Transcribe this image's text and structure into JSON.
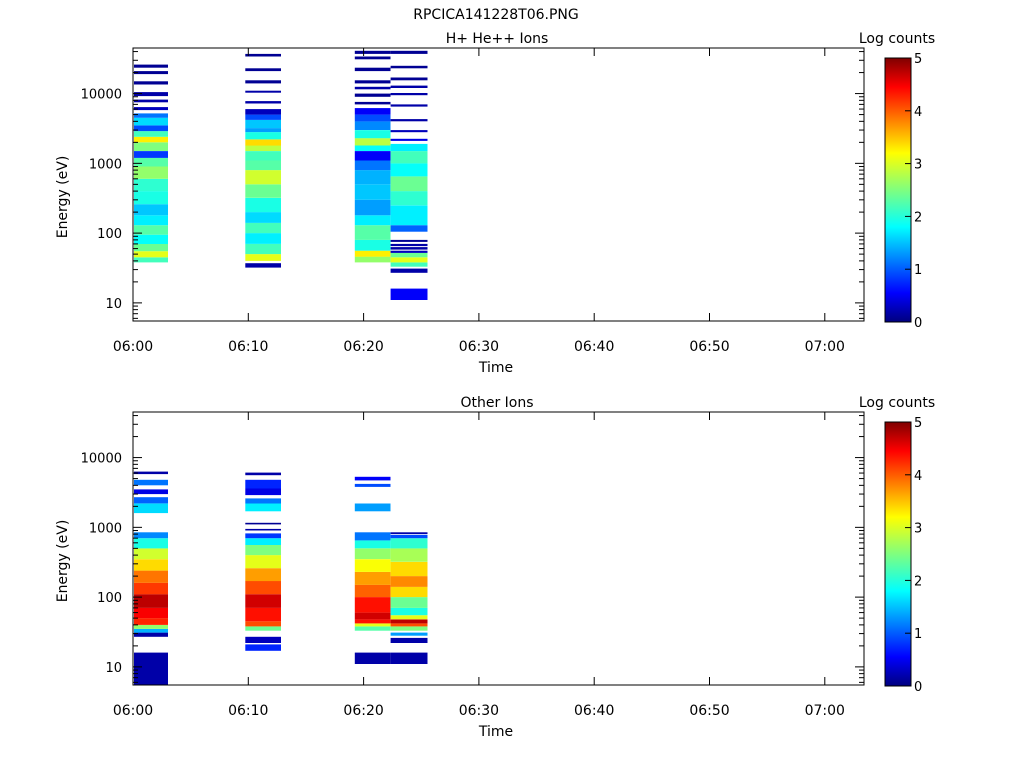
{
  "figure_title": "RPCICA141228T06.PNG",
  "colormap": [
    "#00007f",
    "#0000ff",
    "#007fff",
    "#00ffff",
    "#7fff7f",
    "#ffff00",
    "#ff7f00",
    "#ff0000",
    "#7f0000"
  ],
  "chart_data": [
    {
      "type": "heatmap",
      "title": "H+ He++ Ions",
      "xlabel": "Time",
      "ylabel": "Energy (eV)",
      "yscale": "log",
      "ylim": [
        5.5,
        45000
      ],
      "xlim": [
        "06:00",
        "07:03"
      ],
      "x_ticks": [
        "06:00",
        "06:10",
        "06:20",
        "06:30",
        "06:40",
        "06:50",
        "07:00"
      ],
      "y_ticks": [
        "10",
        "100",
        "1000",
        "10000"
      ],
      "colorbar": {
        "label": "Log counts",
        "min": 0,
        "max": 5,
        "ticks": [
          "0",
          "1",
          "2",
          "3",
          "4",
          "5"
        ]
      },
      "columns": [
        {
          "t_start": "06:00.0",
          "t_end": "06:03.3",
          "cells": [
            [
              38,
              45,
              2.2
            ],
            [
              45,
              55,
              3.0
            ],
            [
              55,
              70,
              2.4
            ],
            [
              70,
              95,
              1.9
            ],
            [
              95,
              130,
              2.3
            ],
            [
              130,
              180,
              1.8
            ],
            [
              180,
              260,
              1.6
            ],
            [
              260,
              400,
              2.0
            ],
            [
              400,
              600,
              2.1
            ],
            [
              600,
              900,
              2.6
            ],
            [
              900,
              1200,
              2.3
            ],
            [
              1200,
              1500,
              0.9
            ],
            [
              1500,
              2000,
              2.5
            ],
            [
              2000,
              2400,
              3.2
            ],
            [
              2400,
              2900,
              2.2
            ],
            [
              2900,
              3500,
              1.0
            ],
            [
              3500,
              4500,
              1.7
            ],
            [
              4500,
              5200,
              1.2
            ],
            [
              5800,
              6400,
              0.3
            ],
            [
              7500,
              8200,
              0.2
            ],
            [
              9200,
              10500,
              0.2
            ],
            [
              13500,
              15000,
              0.1
            ],
            [
              19000,
              21000,
              0.1
            ],
            [
              23500,
              26000,
              0.1
            ]
          ]
        },
        {
          "t_start": "06:10.0",
          "t_end": "06:13.1",
          "cells": [
            [
              32,
              37,
              0.2
            ],
            [
              40,
              50,
              3.0
            ],
            [
              50,
              70,
              2.2
            ],
            [
              70,
              100,
              1.8
            ],
            [
              100,
              140,
              2.2
            ],
            [
              140,
              200,
              1.7
            ],
            [
              200,
              320,
              2.0
            ],
            [
              320,
              500,
              2.4
            ],
            [
              500,
              800,
              2.9
            ],
            [
              800,
              1100,
              2.3
            ],
            [
              1100,
              1500,
              2.2
            ],
            [
              1500,
              1800,
              2.8
            ],
            [
              1800,
              2200,
              3.3
            ],
            [
              2200,
              2800,
              2.0
            ],
            [
              2800,
              3200,
              1.4
            ],
            [
              3200,
              4200,
              1.6
            ],
            [
              4200,
              5000,
              1.0
            ],
            [
              5000,
              6000,
              0.3
            ],
            [
              7200,
              7800,
              0.2
            ],
            [
              10300,
              11000,
              0.2
            ],
            [
              14000,
              15500,
              0.1
            ],
            [
              21000,
              23000,
              0.1
            ],
            [
              34000,
              37000,
              0.1
            ]
          ]
        },
        {
          "t_start": "06:19.5",
          "t_end": "06:22.6",
          "cells": [
            [
              38,
              46,
              2.6
            ],
            [
              46,
              56,
              3.2
            ],
            [
              56,
              80,
              2.0
            ],
            [
              80,
              130,
              2.3
            ],
            [
              130,
              180,
              1.8
            ],
            [
              180,
              300,
              1.4
            ],
            [
              300,
              500,
              1.6
            ],
            [
              500,
              800,
              1.5
            ],
            [
              800,
              1100,
              1.2
            ],
            [
              1100,
              1500,
              0.6
            ],
            [
              1500,
              1800,
              1.9
            ],
            [
              1800,
              2300,
              2.8
            ],
            [
              2300,
              3000,
              2.0
            ],
            [
              3000,
              4000,
              1.3
            ],
            [
              4000,
              5000,
              1.0
            ],
            [
              5000,
              6200,
              0.6
            ],
            [
              7000,
              7600,
              0.1
            ],
            [
              9000,
              10000,
              0.1
            ],
            [
              11500,
              12500,
              0.2
            ],
            [
              14000,
              15500,
              0.1
            ],
            [
              21000,
              23500,
              0.1
            ],
            [
              31000,
              34000,
              0.1
            ],
            [
              37000,
              41000,
              0.1
            ]
          ]
        },
        {
          "t_start": "06:22.6",
          "t_end": "06:25.8",
          "cells": [
            [
              11,
              16,
              0.6
            ],
            [
              27,
              31,
              0.2
            ],
            [
              33,
              38,
              2.2
            ],
            [
              38,
              45,
              3.0
            ],
            [
              45,
              52,
              2.4
            ],
            [
              52,
              56,
              0.3
            ],
            [
              58,
              63,
              0.2
            ],
            [
              65,
              70,
              0.2
            ],
            [
              75,
              80,
              0.1
            ],
            [
              105,
              130,
              1.1
            ],
            [
              130,
              250,
              1.8
            ],
            [
              250,
              400,
              2.1
            ],
            [
              400,
              650,
              2.4
            ],
            [
              650,
              1000,
              1.9
            ],
            [
              1000,
              1500,
              2.2
            ],
            [
              1500,
              1900,
              1.8
            ],
            [
              2100,
              2250,
              0.5
            ],
            [
              2800,
              3000,
              0.3
            ],
            [
              4000,
              4300,
              0.2
            ],
            [
              6500,
              7000,
              0.2
            ],
            [
              9500,
              10200,
              0.2
            ],
            [
              12000,
              13000,
              0.2
            ],
            [
              15500,
              17000,
              0.1
            ],
            [
              23000,
              25000,
              0.1
            ],
            [
              37000,
              41000,
              0.1
            ]
          ]
        }
      ]
    },
    {
      "type": "heatmap",
      "title": "Other Ions",
      "xlabel": "Time",
      "ylabel": "Energy (eV)",
      "yscale": "log",
      "ylim": [
        5.5,
        45000
      ],
      "xlim": [
        "06:00",
        "07:03"
      ],
      "x_ticks": [
        "06:00",
        "06:10",
        "06:20",
        "06:30",
        "06:40",
        "06:50",
        "07:00"
      ],
      "y_ticks": [
        "10",
        "100",
        "1000",
        "10000"
      ],
      "colorbar": {
        "label": "Log counts",
        "min": 0,
        "max": 5,
        "ticks": [
          "0",
          "1",
          "2",
          "3",
          "4",
          "5"
        ]
      },
      "columns": [
        {
          "t_start": "06:00.0",
          "t_end": "06:03.3",
          "cells": [
            [
              5.5,
              16,
              0.2
            ],
            [
              27,
              31,
              0.2
            ],
            [
              31,
              35,
              1.5
            ],
            [
              35,
              40,
              2.6
            ],
            [
              40,
              50,
              4.2
            ],
            [
              50,
              70,
              4.4
            ],
            [
              70,
              110,
              4.7
            ],
            [
              110,
              160,
              4.1
            ],
            [
              160,
              240,
              3.8
            ],
            [
              240,
              350,
              3.3
            ],
            [
              350,
              500,
              2.9
            ],
            [
              500,
              700,
              2.0
            ],
            [
              700,
              850,
              1.3
            ],
            [
              1600,
              2200,
              1.7
            ],
            [
              2200,
              2700,
              1.1
            ],
            [
              3000,
              3500,
              0.5
            ],
            [
              4000,
              4800,
              1.2
            ],
            [
              5800,
              6300,
              0.2
            ]
          ]
        },
        {
          "t_start": "06:10.0",
          "t_end": "06:13.1",
          "cells": [
            [
              17,
              21,
              0.8
            ],
            [
              22,
              27,
              0.3
            ],
            [
              33,
              38,
              2.4
            ],
            [
              38,
              45,
              4.0
            ],
            [
              45,
              70,
              4.3
            ],
            [
              70,
              110,
              4.6
            ],
            [
              110,
              170,
              4.0
            ],
            [
              170,
              260,
              3.6
            ],
            [
              260,
              400,
              3.0
            ],
            [
              400,
              560,
              2.5
            ],
            [
              560,
              700,
              1.8
            ],
            [
              700,
              820,
              0.9
            ],
            [
              900,
              950,
              0.2
            ],
            [
              1100,
              1160,
              0.1
            ],
            [
              1700,
              2200,
              1.8
            ],
            [
              2200,
              2600,
              1.2
            ],
            [
              2900,
              3600,
              0.5
            ],
            [
              3600,
              4800,
              0.8
            ],
            [
              5600,
              6100,
              0.2
            ]
          ]
        },
        {
          "t_start": "06:19.5",
          "t_end": "06:22.6",
          "cells": [
            [
              11,
              16,
              0.2
            ],
            [
              33,
              38,
              2.3
            ],
            [
              38,
              42,
              3.0
            ],
            [
              42,
              48,
              4.3
            ],
            [
              48,
              60,
              4.6
            ],
            [
              60,
              100,
              4.3
            ],
            [
              100,
              150,
              3.9
            ],
            [
              150,
              230,
              3.6
            ],
            [
              230,
              350,
              3.1
            ],
            [
              350,
              500,
              2.6
            ],
            [
              500,
              650,
              2.0
            ],
            [
              650,
              850,
              1.2
            ],
            [
              1700,
              2200,
              1.4
            ],
            [
              3800,
              4200,
              1.0
            ],
            [
              4700,
              5300,
              0.6
            ]
          ]
        },
        {
          "t_start": "06:22.6",
          "t_end": "06:25.8",
          "cells": [
            [
              11,
              16,
              0.2
            ],
            [
              22,
              26,
              0.2
            ],
            [
              28,
              31,
              1.4
            ],
            [
              33,
              38,
              2.5
            ],
            [
              38,
              42,
              4.0
            ],
            [
              42,
              48,
              4.7
            ],
            [
              48,
              55,
              3.0
            ],
            [
              55,
              70,
              2.0
            ],
            [
              70,
              100,
              2.4
            ],
            [
              100,
              140,
              3.3
            ],
            [
              140,
              200,
              3.7
            ],
            [
              200,
              320,
              3.3
            ],
            [
              320,
              500,
              2.7
            ],
            [
              500,
              700,
              2.1
            ],
            [
              700,
              780,
              1.0
            ],
            [
              800,
              850,
              0.2
            ]
          ]
        }
      ]
    }
  ]
}
